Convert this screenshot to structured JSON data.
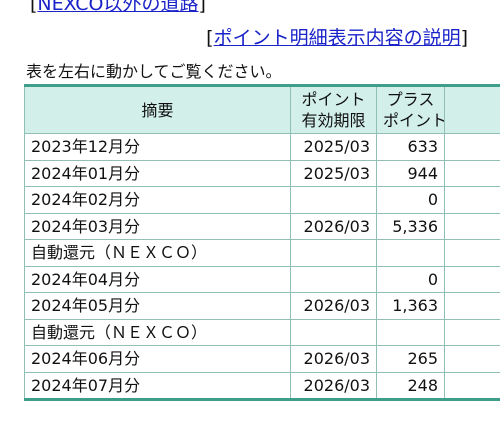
{
  "top_link": {
    "open_bracket": "[",
    "label": "NEXCO以外の道路",
    "close_bracket": "]"
  },
  "explain_link": {
    "open_bracket": "[",
    "label": "ポイント明細表示内容の説明",
    "close_bracket": "]"
  },
  "instruction": "表を左右に動かしてご覧ください。",
  "table": {
    "header": {
      "summary": "摘要",
      "expiry_line1": "ポイント",
      "expiry_line2": "有効期限",
      "plus_line1": "プラス",
      "plus_line2": "ポイント"
    },
    "rows": [
      {
        "summary": "2023年12月分",
        "expiry": "2025/03",
        "plus": "633"
      },
      {
        "summary": "2024年01月分",
        "expiry": "2025/03",
        "plus": "944"
      },
      {
        "summary": "2024年02月分",
        "expiry": "",
        "plus": "0"
      },
      {
        "summary": "2024年03月分",
        "expiry": "2026/03",
        "plus": "5,336"
      },
      {
        "summary": "自動還元（ＮＥＸＣＯ）",
        "expiry": "",
        "plus": ""
      },
      {
        "summary": "2024年04月分",
        "expiry": "",
        "plus": "0"
      },
      {
        "summary": "2024年05月分",
        "expiry": "2026/03",
        "plus": "1,363"
      },
      {
        "summary": "自動還元（ＮＥＸＣＯ）",
        "expiry": "",
        "plus": ""
      },
      {
        "summary": "2024年06月分",
        "expiry": "2026/03",
        "plus": "265"
      },
      {
        "summary": "2024年07月分",
        "expiry": "2026/03",
        "plus": "248"
      }
    ]
  },
  "colors": {
    "link": "#1a23c8",
    "header_bg": "#d2efe9",
    "border_accent": "#3f9e8a",
    "cell_border": "#8fbfb5"
  }
}
